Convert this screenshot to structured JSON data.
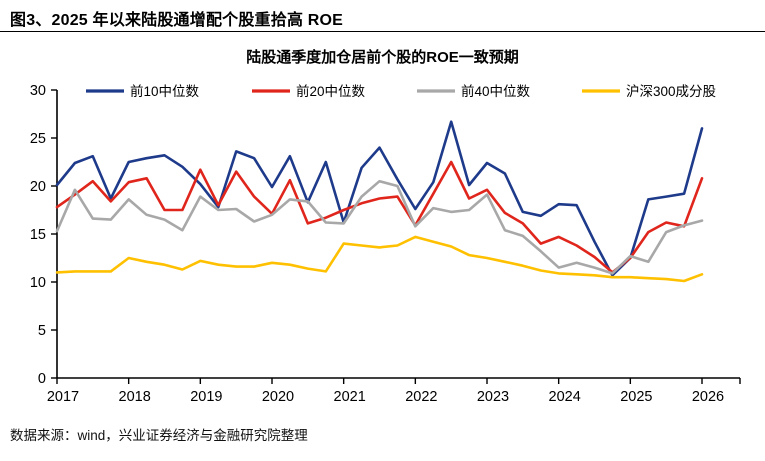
{
  "header": {
    "title": "图3、2025 年以来陆股通增配个股重拾高 ROE"
  },
  "footer": {
    "source": "数据来源：wind，兴业证券经济与金融研究院整理"
  },
  "chart_data": {
    "type": "line",
    "title": "陆股通季度加仓居前个股的ROE一致预期",
    "xlabel": "",
    "ylabel": "",
    "ylim": [
      0,
      30
    ],
    "y_ticks": [
      0,
      5,
      10,
      15,
      20,
      25,
      30
    ],
    "x_tick_labels": [
      "2017",
      "2018",
      "2019",
      "2020",
      "2021",
      "2022",
      "2023",
      "2024",
      "2025",
      "2026"
    ],
    "grid": false,
    "legend_position": "top",
    "axis_color": "#000000",
    "categories": [
      "2017Q1",
      "2017Q2",
      "2017Q3",
      "2017Q4",
      "2018Q1",
      "2018Q2",
      "2018Q3",
      "2018Q4",
      "2019Q1",
      "2019Q2",
      "2019Q3",
      "2019Q4",
      "2020Q1",
      "2020Q2",
      "2020Q3",
      "2020Q4",
      "2021Q1",
      "2021Q2",
      "2021Q3",
      "2021Q4",
      "2022Q1",
      "2022Q2",
      "2022Q3",
      "2022Q4",
      "2023Q1",
      "2023Q2",
      "2023Q3",
      "2023Q4",
      "2024Q1",
      "2024Q2",
      "2024Q3",
      "2024Q4",
      "2025Q1",
      "2025Q2",
      "2025Q3",
      "2025Q4",
      "2026Q1"
    ],
    "series": [
      {
        "name": "前10中位数",
        "color": "#1e3a8a",
        "values": [
          20.1,
          22.4,
          23.1,
          18.7,
          22.5,
          22.9,
          23.2,
          22.0,
          20.2,
          17.8,
          23.6,
          22.9,
          19.9,
          23.1,
          18.3,
          22.5,
          16.2,
          21.9,
          24.0,
          20.7,
          17.6,
          20.4,
          26.7,
          20.1,
          22.4,
          21.3,
          17.3,
          16.9,
          18.1,
          18.0,
          14.2,
          10.7,
          12.5,
          18.6,
          18.9,
          19.2,
          26.0
        ]
      },
      {
        "name": "前20中位数",
        "color": "#e0261c",
        "values": [
          17.8,
          19.1,
          20.5,
          18.4,
          20.4,
          20.8,
          17.5,
          17.5,
          21.7,
          18.0,
          21.5,
          18.9,
          17.1,
          20.6,
          16.1,
          16.7,
          17.5,
          18.2,
          18.7,
          18.9,
          15.9,
          19.2,
          22.5,
          18.7,
          19.6,
          17.2,
          16.1,
          14.0,
          14.7,
          13.8,
          12.6,
          11.0,
          12.5,
          15.2,
          16.2,
          15.8,
          20.8
        ]
      },
      {
        "name": "前40中位数",
        "color": "#a8a8a8",
        "values": [
          15.3,
          19.6,
          16.6,
          16.5,
          18.6,
          17.0,
          16.5,
          15.4,
          18.9,
          17.5,
          17.6,
          16.3,
          17.0,
          18.6,
          18.4,
          16.2,
          16.1,
          18.9,
          20.5,
          20.0,
          15.8,
          17.7,
          17.3,
          17.5,
          19.1,
          15.4,
          14.8,
          13.2,
          11.5,
          12.0,
          11.5,
          10.9,
          12.7,
          12.1,
          15.2,
          15.9,
          16.4
        ]
      },
      {
        "name": "沪深300成分股",
        "color": "#ffc000",
        "values": [
          11.0,
          11.1,
          11.1,
          11.1,
          12.5,
          12.1,
          11.8,
          11.3,
          12.2,
          11.8,
          11.6,
          11.6,
          12.0,
          11.8,
          11.4,
          11.1,
          14.0,
          13.8,
          13.6,
          13.8,
          14.7,
          14.2,
          13.7,
          12.8,
          12.5,
          12.1,
          11.7,
          11.2,
          10.9,
          10.8,
          10.7,
          10.5,
          10.5,
          10.4,
          10.3,
          10.1,
          10.8
        ]
      }
    ]
  }
}
